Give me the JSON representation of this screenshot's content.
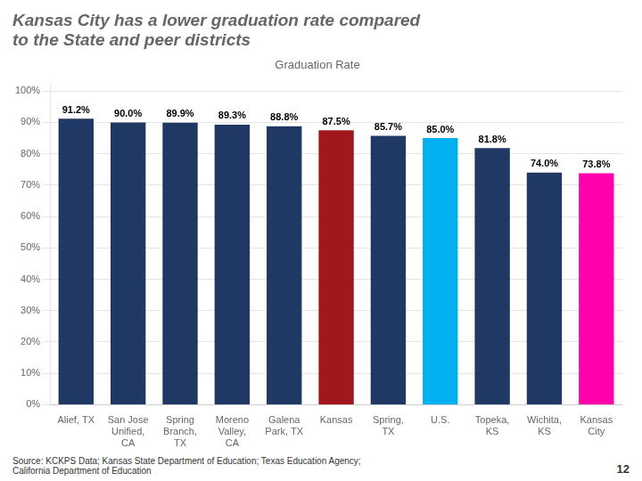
{
  "chart_data": {
    "type": "bar",
    "title": "Kansas City has a lower graduation rate compared\nto the State and peer districts",
    "subtitle": "Graduation Rate",
    "categories": [
      "Alief, TX",
      "San Jose\nUnified,\nCA",
      "Spring\nBranch,\nTX",
      "Moreno\nValley,\nCA",
      "Galena\nPark, TX",
      "Kansas",
      "Spring,\nTX",
      "U.S.",
      "Topeka,\nKS",
      "Wichita,\nKS",
      "Kansas\nCity"
    ],
    "values": [
      91.2,
      90.0,
      89.9,
      89.3,
      88.8,
      87.5,
      85.7,
      85.0,
      81.8,
      74.0,
      73.8
    ],
    "value_labels": [
      "91.2%",
      "90.0%",
      "89.9%",
      "89.3%",
      "88.8%",
      "87.5%",
      "85.7%",
      "85.0%",
      "81.8%",
      "74.0%",
      "73.8%"
    ],
    "colors": [
      "#1F3864",
      "#1F3864",
      "#1F3864",
      "#1F3864",
      "#1F3864",
      "#A0181C",
      "#1F3864",
      "#00B0F0",
      "#1F3864",
      "#1F3864",
      "#FF00AA"
    ],
    "data_labels": true,
    "ylim": [
      0,
      102
    ],
    "yticks": [
      {
        "value": 0,
        "label": "0%"
      },
      {
        "value": 10,
        "label": "10%"
      },
      {
        "value": 20,
        "label": "20%"
      },
      {
        "value": 30,
        "label": "30%"
      },
      {
        "value": 40,
        "label": "40%"
      },
      {
        "value": 50,
        "label": "50%"
      },
      {
        "value": 60,
        "label": "60%"
      },
      {
        "value": 70,
        "label": "70%"
      },
      {
        "value": 80,
        "label": "80%"
      },
      {
        "value": 90,
        "label": "90%"
      },
      {
        "value": 100,
        "label": "100%"
      }
    ],
    "grid": true,
    "annotations": [
      "Source: KCKPS Data; Kansas State Department of Education; Texas Education Agency;\nCalifornia Department of Education",
      "12"
    ]
  }
}
